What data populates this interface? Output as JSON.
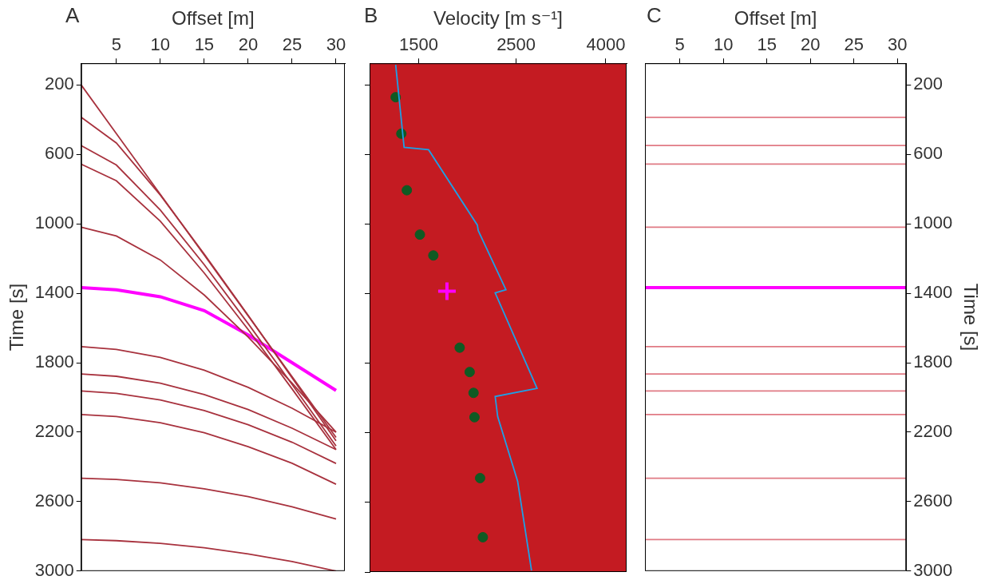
{
  "chart_data": [
    {
      "panel": "A",
      "type": "line",
      "x_label": "Offset [m]",
      "y_label": "Time [s]",
      "x": [
        1,
        5,
        10,
        15,
        20,
        25,
        30
      ],
      "xlim": [
        1,
        31
      ],
      "xticks": [
        5,
        10,
        15,
        20,
        25,
        30
      ],
      "ylim": [
        75,
        3000
      ],
      "yticks": [
        200,
        600,
        1000,
        1400,
        1800,
        2200,
        2600,
        3000
      ],
      "grid": false,
      "series": [
        {
          "color": "#a8323e",
          "values": [
            200,
            480,
            830,
            1180,
            1530,
            1880,
            2230
          ]
        },
        {
          "color": "#a8323e",
          "values": [
            386,
            534,
            834,
            1174,
            1527,
            1887,
            2250
          ]
        },
        {
          "color": "#a8323e",
          "values": [
            549,
            661,
            920,
            1235,
            1575,
            1925,
            2280
          ]
        },
        {
          "color": "#a8323e",
          "values": [
            656,
            752,
            985,
            1283,
            1609,
            1951,
            2300
          ]
        },
        {
          "color": "#a8323e",
          "values": [
            1019,
            1070,
            1208,
            1410,
            1652,
            1918,
            2200
          ]
        },
        {
          "color": "#ff00ff",
          "line_style": "thick",
          "values": [
            1367,
            1380,
            1420,
            1500,
            1640,
            1800,
            1960
          ]
        },
        {
          "color": "#a8323e",
          "values": [
            1707,
            1723,
            1769,
            1843,
            1942,
            2062,
            2200
          ]
        },
        {
          "color": "#a8323e",
          "values": [
            1865,
            1878,
            1918,
            1983,
            2070,
            2177,
            2300
          ]
        },
        {
          "color": "#a8323e",
          "values": [
            1963,
            1976,
            2014,
            2075,
            2157,
            2258,
            2380
          ]
        },
        {
          "color": "#a8323e",
          "values": [
            2098,
            2110,
            2146,
            2203,
            2284,
            2379,
            2500
          ]
        },
        {
          "color": "#a8323e",
          "values": [
            2465,
            2472,
            2492,
            2526,
            2571,
            2630,
            2700
          ]
        },
        {
          "color": "#a8323e",
          "values": [
            2819,
            2825,
            2840,
            2866,
            2901,
            2945,
            3000
          ]
        }
      ]
    },
    {
      "panel": "B",
      "type": "scatter",
      "x_label": "Velocity [m s⁻¹]",
      "log": "x",
      "xlim": [
        1160,
        4460
      ],
      "xticks": [
        1500,
        2500,
        4000
      ],
      "ylim": [
        75,
        3000
      ],
      "yticks": [
        200,
        600,
        1000,
        1400,
        1800,
        2200,
        2600,
        3000
      ],
      "tick_labels": "x",
      "grid": false,
      "series": [
        {
          "type": "line",
          "color": "#1ea0e6",
          "x": [
            1330,
            1390,
            1580,
            2040,
            2050,
            2370,
            2240,
            2790,
            2240,
            2270,
            2520,
            2710
          ],
          "values": [
            84,
            558,
            572,
            1005,
            1037,
            1377,
            1395,
            1944,
            1991,
            2107,
            2479,
            2991
          ]
        },
        {
          "type": "scatter",
          "marker": "circle",
          "color": "#0f5a23",
          "x": [
            1330,
            1370,
            1410,
            1510,
            1620,
            1860,
            1960,
            2000,
            2010,
            2070,
            2100
          ],
          "values": [
            270,
            480,
            805,
            1060,
            1180,
            1710,
            1850,
            1970,
            2110,
            2460,
            2800
          ]
        },
        {
          "type": "scatter",
          "marker": "cross",
          "color": "#ff00ff",
          "x": [
            1740
          ],
          "values": [
            1386
          ]
        }
      ]
    },
    {
      "panel": "C",
      "type": "line",
      "x_label": "Offset [m]",
      "y_label": "Time [s]",
      "x": [
        1,
        31
      ],
      "xlim": [
        1,
        31
      ],
      "xticks": [
        5,
        10,
        15,
        20,
        25,
        30
      ],
      "ylim": [
        75,
        3000
      ],
      "yticks": [
        200,
        600,
        1000,
        1400,
        1800,
        2200,
        2600,
        3000
      ],
      "grid": false,
      "series": [
        {
          "color": "#e07a84",
          "values": [
            386,
            386
          ]
        },
        {
          "color": "#e07a84",
          "values": [
            549,
            549
          ]
        },
        {
          "color": "#e07a84",
          "values": [
            656,
            656
          ]
        },
        {
          "color": "#e07a84",
          "values": [
            1019,
            1019
          ]
        },
        {
          "color": "#ff00ff",
          "line_style": "thick",
          "values": [
            1367,
            1367
          ]
        },
        {
          "color": "#e07a84",
          "values": [
            1707,
            1707
          ]
        },
        {
          "color": "#e07a84",
          "values": [
            1865,
            1865
          ]
        },
        {
          "color": "#e07a84",
          "values": [
            1963,
            1963
          ]
        },
        {
          "color": "#e07a84",
          "values": [
            2098,
            2098
          ]
        },
        {
          "color": "#e07a84",
          "values": [
            2465,
            2465
          ]
        },
        {
          "color": "#e07a84",
          "values": [
            2819,
            2819
          ]
        }
      ]
    }
  ]
}
